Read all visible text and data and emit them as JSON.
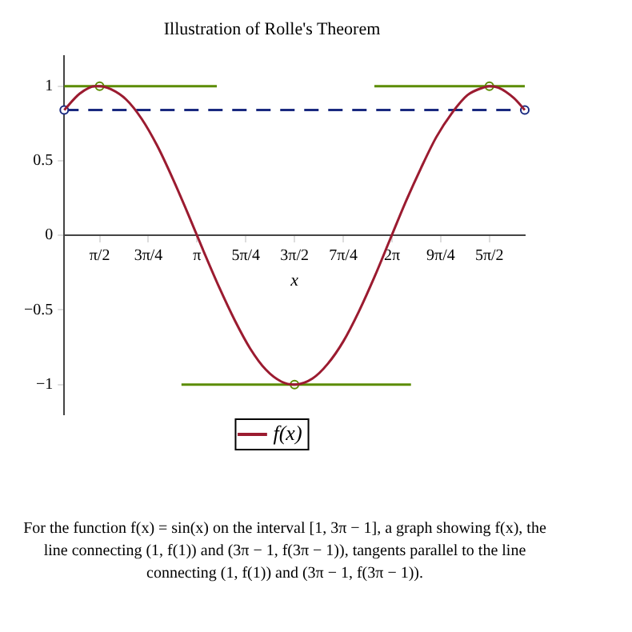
{
  "chart_data": {
    "type": "line",
    "title": "Illustration of Rolle's Theorem",
    "xlabel": "x",
    "xlim": [
      1,
      8.4248
    ],
    "xticks": [
      {
        "value": 1.5708,
        "label": "π/2"
      },
      {
        "value": 2.3562,
        "label": "3π/4"
      },
      {
        "value": 3.1416,
        "label": "π"
      },
      {
        "value": 3.927,
        "label": "5π/4"
      },
      {
        "value": 4.7124,
        "label": "3π/2"
      },
      {
        "value": 5.4978,
        "label": "7π/4"
      },
      {
        "value": 6.2832,
        "label": "2π"
      },
      {
        "value": 7.0686,
        "label": "9π/4"
      },
      {
        "value": 7.854,
        "label": "5π/2"
      }
    ],
    "ylim": [
      -1.2,
      1.2
    ],
    "yticks": [
      -1,
      -0.5,
      0,
      0.5,
      1
    ],
    "grid": false,
    "legend": "bottom",
    "series": [
      {
        "name": "f(x)",
        "color": "#9b1b30",
        "marker": "none",
        "x": [
          1,
          1.25,
          1.5,
          1.5708,
          1.75,
          2,
          2.25,
          2.5,
          2.75,
          3,
          3.25,
          3.5,
          3.75,
          4,
          4.25,
          4.5,
          4.7124,
          5,
          5.25,
          5.5,
          5.75,
          6,
          6.25,
          6.5,
          6.75,
          7,
          7.25,
          7.5,
          7.75,
          7.854,
          8,
          8.25,
          8.4248
        ],
        "values": [
          0.84,
          0.95,
          1,
          1,
          0.98,
          0.91,
          0.78,
          0.6,
          0.38,
          0.14,
          -0.11,
          -0.35,
          -0.57,
          -0.76,
          -0.9,
          -0.98,
          -1,
          -0.96,
          -0.86,
          -0.71,
          -0.51,
          -0.28,
          -0.03,
          0.22,
          0.45,
          0.66,
          0.82,
          0.94,
          0.99,
          1,
          0.99,
          0.92,
          0.84
        ]
      },
      {
        "color": "#5b8c00",
        "marker": "none",
        "x": [
          1,
          3.46
        ],
        "values": [
          1,
          1
        ]
      },
      {
        "color": "#5b8c00",
        "marker": "none",
        "x": [
          2.89,
          6.59
        ],
        "values": [
          -1,
          -1
        ]
      },
      {
        "color": "#5b8c00",
        "marker": "none",
        "x": [
          6.0,
          8.4248
        ],
        "values": [
          1,
          1
        ]
      },
      {
        "type": "scatter",
        "color": "#5b8c00",
        "marker": "circle",
        "x": [
          1.5708,
          4.7124,
          7.854
        ],
        "values": [
          1,
          -1,
          1
        ]
      },
      {
        "color": "#1a2a80",
        "marker": "circle",
        "line_style": "dashed",
        "x": [
          1,
          8.4248
        ],
        "values": [
          0.84,
          0.84
        ]
      }
    ],
    "annotations": [
      "For the function f(x) = sin(x) on the interval [1, 3π − 1], a graph showing f(x), the line connecting (1, f(1)) and (3π − 1, f(3π − 1)), tangents parallel to the line connecting (1, f(1)) and (3π − 1, f(3π − 1))."
    ]
  }
}
